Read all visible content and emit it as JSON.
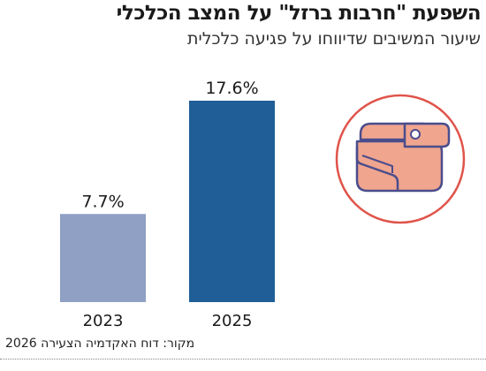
{
  "header": {
    "title": "השפעת \"חרבות ברזל\" על המצב הכלכלי",
    "subtitle": "שיעור המשיבים שדיווחו על פגיעה כלכלית"
  },
  "source": "מקור: דוח האקדמיה הצעירה 2026",
  "icon": {
    "name": "wallet-icon",
    "circle_color": "#e0544a",
    "wallet_color": "#f0a58e",
    "outline_color": "#4a4d8c"
  },
  "chart_data": {
    "type": "bar",
    "title": "השפעת \"חרבות ברזל\" על המצב הכלכלי",
    "subtitle": "שיעור המשיבים שדיווחו על פגיעה כלכלית",
    "categories": [
      "2023",
      "2025"
    ],
    "values": [
      7.7,
      17.6
    ],
    "value_labels": [
      "7.7%",
      "17.6%"
    ],
    "colors": [
      "#8fa0c4",
      "#1f5e96"
    ],
    "ylim": [
      0,
      17.6
    ],
    "grid": false
  }
}
